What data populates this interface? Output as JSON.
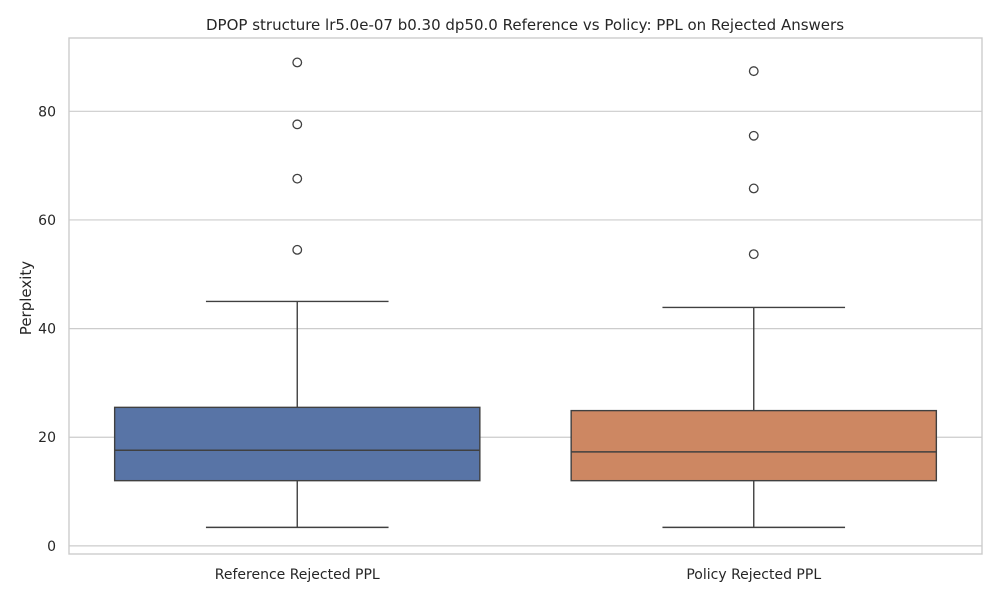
{
  "chart_data": {
    "type": "box",
    "title": "DPOP structure lr5.0e-07 b0.30 dp50.0 Reference vs Policy: PPL on Rejected Answers",
    "xlabel": "",
    "ylabel": "Perplexity",
    "ylim": [
      -1.5,
      93.5
    ],
    "yticks": [
      0,
      20,
      40,
      60,
      80
    ],
    "grid": true,
    "categories": [
      "Reference Rejected PPL",
      "Policy Rejected PPL"
    ],
    "boxes": [
      {
        "category": "Reference Rejected PPL",
        "color": "#5874a6",
        "whisker_low": 3.4,
        "q1": 12.0,
        "median": 17.6,
        "q3": 25.5,
        "whisker_high": 45.0,
        "outliers": [
          54.5,
          67.6,
          77.6,
          89.0
        ]
      },
      {
        "category": "Policy Rejected PPL",
        "color": "#cd8762",
        "whisker_low": 3.4,
        "q1": 12.0,
        "median": 17.3,
        "q3": 24.9,
        "whisker_high": 43.9,
        "outliers": [
          53.7,
          65.8,
          75.5,
          87.4
        ]
      }
    ]
  }
}
